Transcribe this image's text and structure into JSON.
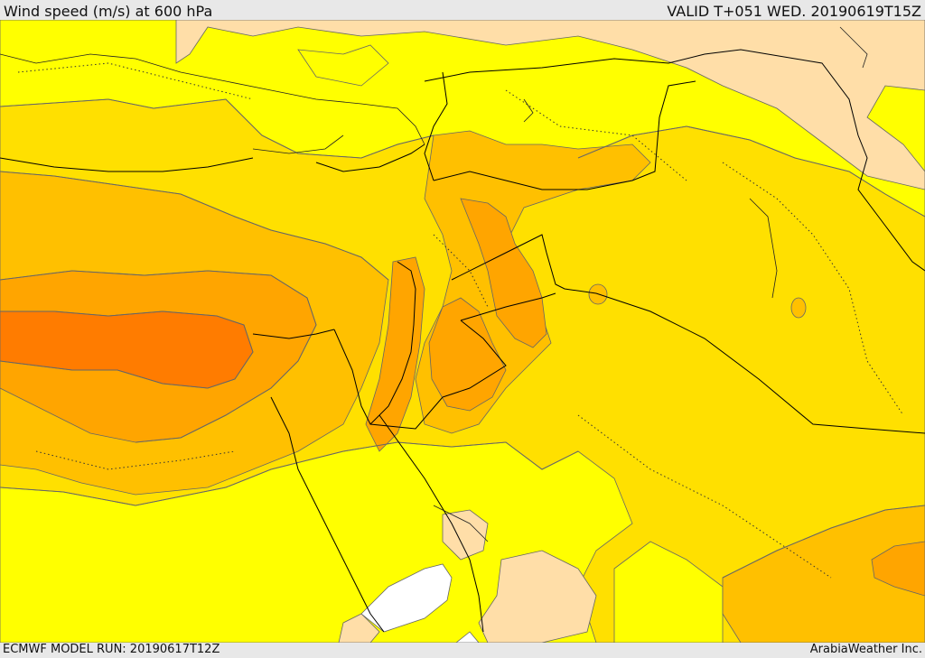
{
  "header": {
    "title": "Wind speed (m/s) at 600 hPa",
    "valid": "VALID T+051 WED. 20190619T15Z"
  },
  "footer": {
    "model_run": "ECMWF MODEL RUN: 20190617T12Z",
    "credit": "ArabiaWeather Inc."
  },
  "map": {
    "colors": {
      "white": "#ffffff",
      "pale": "#ffdea8",
      "yellow": "#ffff00",
      "gold": "#ffe000",
      "amber": "#ffc000",
      "orange": "#ffa500",
      "deep_orange": "#ff7c00",
      "contour": "#666666",
      "border": "#000000"
    }
  }
}
